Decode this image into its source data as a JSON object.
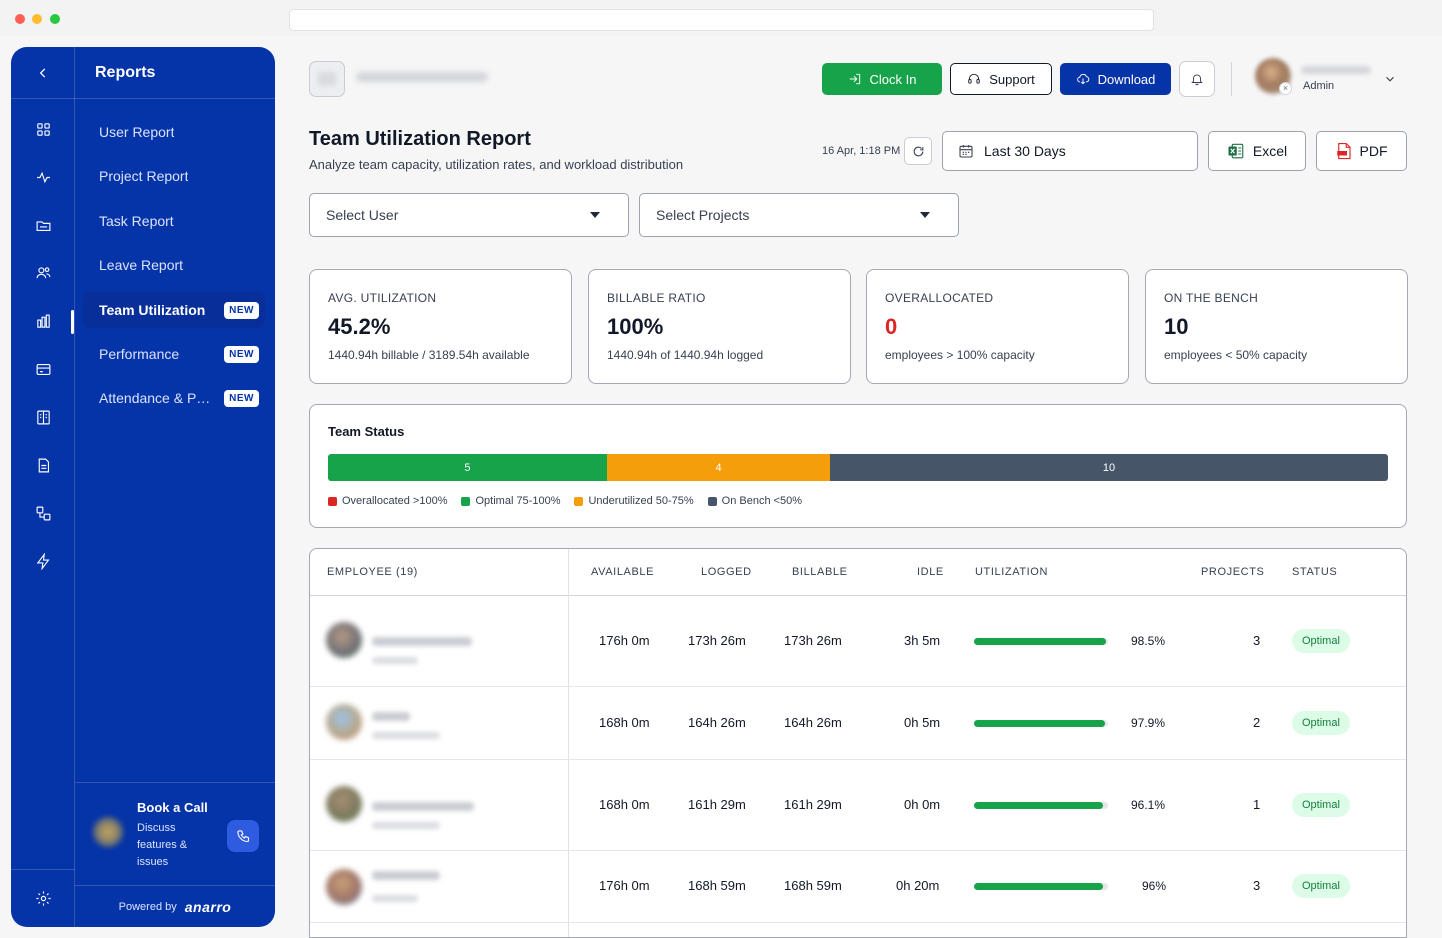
{
  "sidebar": {
    "title": "Reports",
    "items": [
      {
        "label": "User Report",
        "badge": ""
      },
      {
        "label": "Project Report",
        "badge": ""
      },
      {
        "label": "Task Report",
        "badge": ""
      },
      {
        "label": "Leave Report",
        "badge": ""
      },
      {
        "label": "Team Utilization",
        "badge": "NEW"
      },
      {
        "label": "Performance",
        "badge": "NEW"
      },
      {
        "label": "Attendance & Pr...",
        "badge": "NEW"
      }
    ],
    "rail_icons": [
      "grid-icon",
      "activity-icon",
      "folder-icon",
      "users-icon",
      "bar-chart-icon",
      "card-icon",
      "book-icon",
      "document-icon",
      "flow-icon",
      "lightning-icon"
    ],
    "book_call": {
      "title": "Book a Call",
      "desc": "Discuss features & issues"
    },
    "powered_by": "Powered by",
    "brand": "anarro"
  },
  "header": {
    "clock_in": "Clock In",
    "support": "Support",
    "download": "Download",
    "user_role": "Admin"
  },
  "page": {
    "title": "Team Utilization Report",
    "subtitle": "Analyze team capacity, utilization rates, and workload distribution",
    "timestamp": "16 Apr, 1:18 PM",
    "range": "Last 30 Days",
    "excel": "Excel",
    "pdf": "PDF",
    "select_user": "Select User",
    "select_projects": "Select Projects"
  },
  "stats": [
    {
      "label": "AVG. UTILIZATION",
      "value": "45.2%",
      "note": "1440.94h billable / 3189.54h available",
      "alert": false
    },
    {
      "label": "BILLABLE RATIO",
      "value": "100%",
      "note": "1440.94h of 1440.94h logged",
      "alert": false
    },
    {
      "label": "OVERALLOCATED",
      "value": "0",
      "note": "employees > 100% capacity",
      "alert": true
    },
    {
      "label": "ON THE BENCH",
      "value": "10",
      "note": "employees < 50% capacity",
      "alert": false
    }
  ],
  "team_status": {
    "title": "Team Status",
    "segments": [
      {
        "label": "5",
        "count": 5,
        "color": "#16a34a"
      },
      {
        "label": "4",
        "count": 4,
        "color": "#f59e0b"
      },
      {
        "label": "10",
        "count": 10,
        "color": "#475569"
      }
    ],
    "legend": [
      {
        "label": "Overallocated >100%",
        "color": "#dc2626"
      },
      {
        "label": "Optimal 75-100%",
        "color": "#16a34a"
      },
      {
        "label": "Underutilized 50-75%",
        "color": "#f59e0b"
      },
      {
        "label": "On Bench <50%",
        "color": "#475569"
      }
    ]
  },
  "table": {
    "columns": [
      "EMPLOYEE (19)",
      "AVAILABLE",
      "LOGGED",
      "BILLABLE",
      "IDLE",
      "UTILIZATION",
      "PROJECTS",
      "STATUS"
    ],
    "rows": [
      {
        "available": "176h 0m",
        "logged": "173h 26m",
        "billable": "173h 26m",
        "idle": "3h 5m",
        "util": "98.5%",
        "util_value": 98.5,
        "projects": "3",
        "status": "Optimal"
      },
      {
        "available": "168h 0m",
        "logged": "164h 26m",
        "billable": "164h 26m",
        "idle": "0h 5m",
        "util": "97.9%",
        "util_value": 97.9,
        "projects": "2",
        "status": "Optimal"
      },
      {
        "available": "168h 0m",
        "logged": "161h 29m",
        "billable": "161h 29m",
        "idle": "0h 0m",
        "util": "96.1%",
        "util_value": 96.1,
        "projects": "1",
        "status": "Optimal"
      },
      {
        "available": "176h 0m",
        "logged": "168h 59m",
        "billable": "168h 59m",
        "idle": "0h 20m",
        "util": "96%",
        "util_value": 96,
        "projects": "3",
        "status": "Optimal"
      }
    ]
  }
}
